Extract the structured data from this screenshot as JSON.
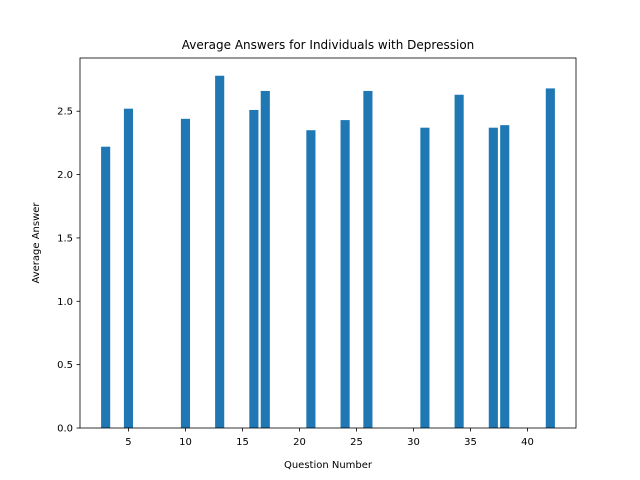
{
  "chart_data": {
    "type": "bar",
    "title": "Average Answers for Individuals with Depression",
    "xlabel": "Question Number",
    "ylabel": "Average Answer",
    "x": [
      3,
      5,
      10,
      13,
      16,
      17,
      21,
      24,
      26,
      31,
      34,
      37,
      38,
      42
    ],
    "values": [
      2.22,
      2.52,
      2.44,
      2.78,
      2.51,
      2.66,
      2.35,
      2.43,
      2.66,
      2.37,
      2.63,
      2.37,
      2.39,
      2.68
    ],
    "xlim": [
      0.75,
      44.25
    ],
    "ylim": [
      0,
      2.92
    ],
    "xticks": [
      5,
      10,
      15,
      20,
      25,
      30,
      35,
      40
    ],
    "xtick_labels": [
      "5",
      "10",
      "15",
      "20",
      "25",
      "30",
      "35",
      "40"
    ],
    "yticks": [
      0.0,
      0.5,
      1.0,
      1.5,
      2.0,
      2.5
    ],
    "ytick_labels": [
      "0.0",
      "0.5",
      "1.0",
      "1.5",
      "2.0",
      "2.5"
    ],
    "bar_color": "#1f77b4",
    "grid": false,
    "legend": "none"
  }
}
